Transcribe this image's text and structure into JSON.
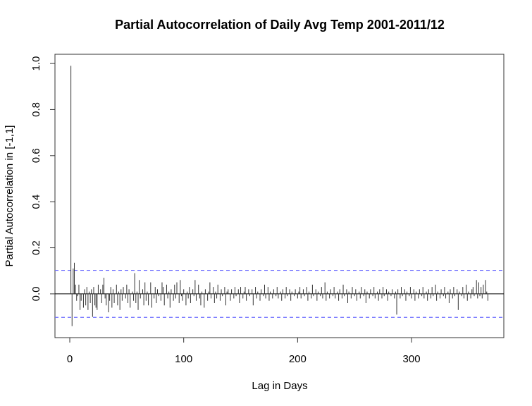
{
  "chart_data": {
    "type": "bar",
    "title": "Partial Autocorrelation of Daily Avg Temp 2001-2011/12",
    "xlabel": "Lag in Days",
    "ylabel": "Partial Autocorrelation in [-1,1]",
    "xlim": [
      -13,
      381
    ],
    "ylim": [
      -0.19,
      1.04
    ],
    "x_ticks": [
      0,
      100,
      200,
      300
    ],
    "y_ticks": [
      0.0,
      0.2,
      0.4,
      0.6,
      0.8,
      1.0
    ],
    "x_tick_labels": [
      "0",
      "100",
      "200",
      "300"
    ],
    "y_tick_labels": [
      "0.0",
      "0.2",
      "0.4",
      "0.6",
      "0.8",
      "1.0"
    ],
    "confidence_bound": 0.102,
    "confidence_color": "#6b6bff",
    "bar_color": "#333333",
    "grid": false,
    "lags_first": 1,
    "values": [
      0.99,
      -0.14,
      0.11,
      0.135,
      0.04,
      -0.03,
      -0.01,
      0.04,
      -0.07,
      -0.03,
      0.0,
      -0.06,
      0.02,
      -0.05,
      0.03,
      -0.07,
      0.01,
      -0.04,
      0.02,
      -0.1,
      0.03,
      -0.05,
      -0.06,
      -0.07,
      0.04,
      0.0,
      0.02,
      -0.04,
      0.04,
      0.07,
      -0.02,
      -0.05,
      0.0,
      -0.08,
      -0.03,
      0.03,
      -0.06,
      0.02,
      -0.04,
      0.0,
      0.04,
      -0.05,
      0.01,
      -0.07,
      0.02,
      -0.03,
      0.03,
      0.0,
      -0.02,
      0.04,
      -0.04,
      0.02,
      -0.06,
      0.0,
      0.01,
      -0.03,
      0.09,
      -0.04,
      0.01,
      -0.07,
      0.06,
      -0.02,
      0.0,
      0.02,
      -0.05,
      0.05,
      -0.03,
      0.01,
      -0.05,
      0.0,
      0.05,
      -0.06,
      0.0,
      -0.02,
      0.03,
      -0.04,
      0.02,
      -0.01,
      0.0,
      -0.03,
      0.05,
      0.03,
      -0.05,
      0.0,
      0.04,
      -0.02,
      0.01,
      -0.06,
      0.02,
      0.0,
      -0.03,
      0.04,
      -0.02,
      0.05,
      0.0,
      -0.04,
      0.06,
      -0.01,
      -0.03,
      0.02,
      0.0,
      -0.05,
      0.01,
      -0.02,
      0.03,
      -0.04,
      0.0,
      0.02,
      -0.01,
      0.06,
      -0.03,
      0.0,
      0.04,
      -0.02,
      -0.05,
      0.01,
      0.0,
      -0.06,
      0.02,
      0.0,
      -0.03,
      0.01,
      0.05,
      -0.02,
      0.0,
      0.03,
      -0.04,
      0.01,
      -0.02,
      0.04,
      0.0,
      -0.03,
      0.02,
      -0.01,
      0.0,
      0.03,
      -0.05,
      0.01,
      0.02,
      0.0,
      -0.03,
      0.02,
      0.0,
      -0.02,
      0.03,
      -0.01,
      0.0,
      0.02,
      -0.04,
      0.03,
      0.0,
      -0.02,
      0.01,
      0.03,
      -0.03,
      0.0,
      0.02,
      -0.01,
      0.0,
      0.02,
      -0.05,
      0.0,
      0.03,
      -0.02,
      0.01,
      0.0,
      -0.03,
      0.02,
      0.0,
      -0.01,
      0.04,
      -0.02,
      0.0,
      0.03,
      -0.03,
      0.01,
      0.0,
      -0.02,
      0.02,
      0.0,
      -0.01,
      0.03,
      -0.02,
      0.0,
      0.01,
      -0.03,
      0.02,
      0.0,
      -0.02,
      0.03,
      -0.01,
      0.0,
      0.02,
      -0.03,
      0.01,
      0.0,
      -0.01,
      0.02,
      0.0,
      -0.02,
      0.01,
      0.03,
      -0.02,
      0.0,
      0.02,
      -0.01,
      0.0,
      0.03,
      -0.03,
      0.01,
      0.0,
      -0.02,
      0.04,
      -0.01,
      0.0,
      0.02,
      -0.03,
      0.01,
      0.0,
      -0.01,
      0.03,
      -0.02,
      0.0,
      0.05,
      -0.03,
      0.01,
      0.0,
      -0.02,
      0.02,
      0.0,
      -0.01,
      0.03,
      -0.02,
      0.0,
      0.01,
      -0.03,
      0.02,
      0.0,
      -0.02,
      0.04,
      -0.01,
      0.0,
      0.02,
      -0.04,
      0.01,
      0.0,
      -0.02,
      0.03,
      0.0,
      -0.01,
      0.02,
      -0.03,
      0.0,
      0.01,
      -0.02,
      0.03,
      0.0,
      -0.01,
      0.02,
      -0.04,
      0.01,
      0.0,
      -0.02,
      0.02,
      0.0,
      -0.01,
      0.03,
      -0.02,
      0.0,
      0.01,
      -0.03,
      0.02,
      0.0,
      -0.02,
      0.03,
      -0.01,
      0.0,
      0.02,
      -0.03,
      0.01,
      0.0,
      -0.01,
      0.02,
      0.0,
      -0.02,
      0.01,
      -0.09,
      0.02,
      0.0,
      -0.02,
      0.03,
      -0.01,
      0.0,
      0.02,
      -0.03,
      0.01,
      0.0,
      -0.01,
      0.03,
      -0.02,
      0.0,
      0.02,
      -0.03,
      0.01,
      0.0,
      -0.02,
      0.02,
      0.0,
      -0.01,
      0.03,
      -0.02,
      0.0,
      0.01,
      -0.03,
      0.02,
      0.0,
      -0.02,
      0.03,
      -0.01,
      0.0,
      0.04,
      -0.03,
      0.01,
      0.0,
      -0.02,
      0.02,
      0.0,
      -0.01,
      0.03,
      -0.02,
      0.0,
      0.01,
      -0.04,
      0.02,
      0.0,
      -0.02,
      0.03,
      -0.01,
      0.0,
      0.02,
      -0.07,
      0.01,
      0.0,
      -0.01,
      0.03,
      -0.02,
      0.0,
      0.04,
      -0.03,
      0.01,
      0.0,
      -0.02,
      0.02,
      0.03,
      -0.01,
      0.0,
      0.06,
      -0.02,
      0.05,
      -0.01,
      0.03,
      -0.02,
      0.04,
      0.0,
      0.06,
      0.01,
      -0.03
    ]
  }
}
